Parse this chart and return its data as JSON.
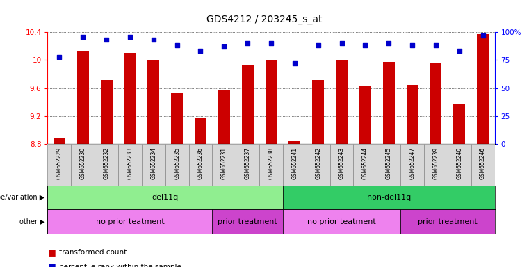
{
  "title": "GDS4212 / 203245_s_at",
  "samples": [
    "GSM652229",
    "GSM652230",
    "GSM652232",
    "GSM652233",
    "GSM652234",
    "GSM652235",
    "GSM652236",
    "GSM652231",
    "GSM652237",
    "GSM652238",
    "GSM652241",
    "GSM652242",
    "GSM652243",
    "GSM652244",
    "GSM652245",
    "GSM652247",
    "GSM652239",
    "GSM652240",
    "GSM652246"
  ],
  "red_values": [
    8.88,
    10.12,
    9.72,
    10.1,
    10.0,
    9.53,
    9.17,
    9.57,
    9.93,
    10.0,
    8.84,
    9.72,
    10.0,
    9.63,
    9.97,
    9.65,
    9.95,
    9.37,
    10.37
  ],
  "blue_pct": [
    78,
    96,
    93,
    96,
    93,
    88,
    83,
    87,
    90,
    90,
    72,
    88,
    90,
    88,
    90,
    88,
    88,
    83,
    97
  ],
  "ylim_left": [
    8.8,
    10.4
  ],
  "ylim_right": [
    0,
    100
  ],
  "right_ticks": [
    0,
    25,
    50,
    75,
    100
  ],
  "right_tick_labels": [
    "0",
    "25",
    "50",
    "75",
    "100%"
  ],
  "left_ticks": [
    8.8,
    9.2,
    9.6,
    10.0,
    10.4
  ],
  "left_tick_labels": [
    "8.8",
    "9.2",
    "9.6",
    "10",
    "10.4"
  ],
  "bar_color": "#cc0000",
  "dot_color": "#0000cc",
  "genotype_groups": [
    {
      "label": "del11q",
      "start": 0,
      "end": 10,
      "color": "#90ee90"
    },
    {
      "label": "non-del11q",
      "start": 10,
      "end": 19,
      "color": "#33cc66"
    }
  ],
  "other_groups": [
    {
      "label": "no prior teatment",
      "start": 0,
      "end": 7,
      "color": "#ee82ee"
    },
    {
      "label": "prior treatment",
      "start": 7,
      "end": 10,
      "color": "#cc44cc"
    },
    {
      "label": "no prior teatment",
      "start": 10,
      "end": 15,
      "color": "#ee82ee"
    },
    {
      "label": "prior treatment",
      "start": 15,
      "end": 19,
      "color": "#cc44cc"
    }
  ],
  "legend_items": [
    {
      "label": "transformed count",
      "color": "#cc0000"
    },
    {
      "label": "percentile rank within the sample",
      "color": "#0000cc"
    }
  ]
}
